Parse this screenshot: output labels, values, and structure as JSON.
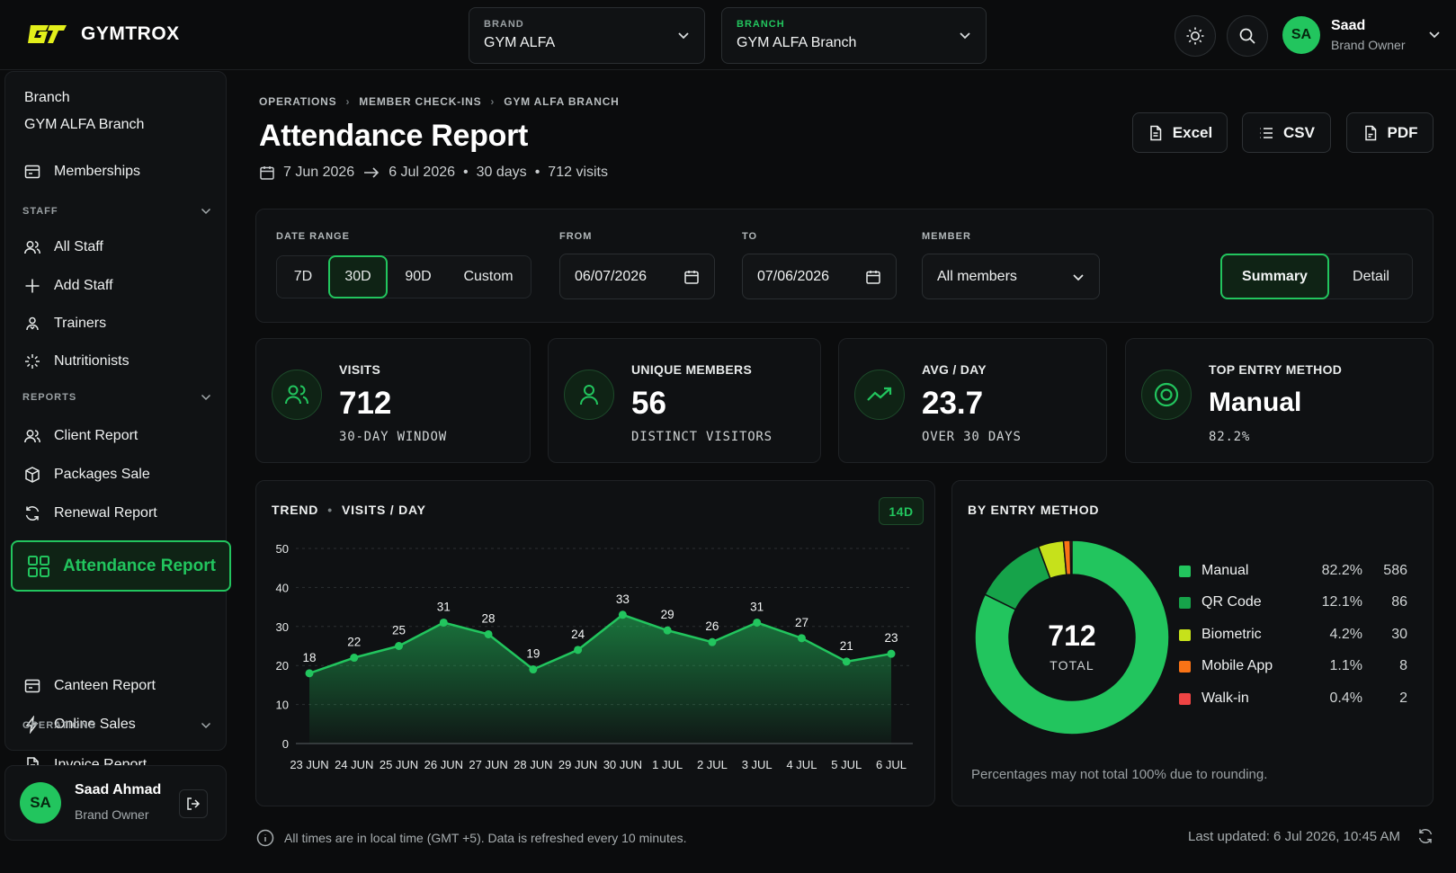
{
  "app": {
    "name": "GYMTROX"
  },
  "header": {
    "brand": {
      "label": "BRAND",
      "value": "GYM ALFA"
    },
    "branch": {
      "label": "BRANCH",
      "value": "GYM ALFA Branch"
    },
    "user": {
      "initials": "SA",
      "name": "Saad",
      "role": "Brand Owner"
    }
  },
  "sidebar": {
    "branch_label": "Branch",
    "branch_value": "GYM ALFA Branch",
    "memberships": "Memberships",
    "staff_section": "STAFF",
    "staff_items": [
      "All Staff",
      "Add Staff",
      "Trainers",
      "Nutritionists"
    ],
    "reports_section": "REPORTS",
    "report_items": [
      "Client Report",
      "Packages Sale",
      "Renewal Report",
      "Attendance Report",
      "Canteen Report",
      "Online Sales",
      "Invoice Report"
    ],
    "operations_section": "OPERATIONS",
    "user": {
      "initials": "SA",
      "name": "Saad Ahmad",
      "role": "Brand Owner"
    }
  },
  "breadcrumb": [
    "OPERATIONS",
    "MEMBER CHECK-INS",
    "GYM ALFA BRANCH"
  ],
  "page": {
    "title": "Attendance Report",
    "date_from": "7 Jun 2026",
    "date_to": "6 Jul 2026",
    "days": "30 days",
    "visits": "712 visits"
  },
  "exports": [
    "Excel",
    "CSV",
    "PDF"
  ],
  "filters": {
    "date_range_label": "DATE RANGE",
    "ranges": [
      "7D",
      "30D",
      "90D",
      "Custom"
    ],
    "selected_range": "30D",
    "from_label": "FROM",
    "from_value": "06/07/2026",
    "to_label": "TO",
    "to_value": "07/06/2026",
    "member_label": "MEMBER",
    "member_value": "All members",
    "views": [
      "Summary",
      "Detail"
    ],
    "selected_view": "Summary"
  },
  "kpis": [
    {
      "label": "VISITS",
      "value": "712",
      "sub": "30-DAY WINDOW",
      "icon": "users-icon"
    },
    {
      "label": "UNIQUE MEMBERS",
      "value": "56",
      "sub": "DISTINCT VISITORS",
      "icon": "user-icon"
    },
    {
      "label": "AVG / DAY",
      "value": "23.7",
      "sub": "OVER 30 DAYS",
      "icon": "trend-up-icon"
    },
    {
      "label": "TOP ENTRY METHOD",
      "value": "Manual",
      "sub": "82.2%",
      "icon": "target-icon"
    }
  ],
  "trend": {
    "title": "TREND",
    "subtitle": "VISITS / DAY",
    "badge": "14D"
  },
  "entry": {
    "title": "BY ENTRY METHOD",
    "total": "712",
    "total_label": "TOTAL",
    "methods": [
      {
        "name": "Manual",
        "pct": "82.2%",
        "count": "586",
        "color": "#22c55e"
      },
      {
        "name": "QR Code",
        "pct": "12.1%",
        "count": "86",
        "color": "#16a34a"
      },
      {
        "name": "Biometric",
        "pct": "4.2%",
        "count": "30",
        "color": "#c6e11b"
      },
      {
        "name": "Mobile App",
        "pct": "1.1%",
        "count": "8",
        "color": "#f97316"
      },
      {
        "name": "Walk-in",
        "pct": "0.4%",
        "count": "2",
        "color": "#ef4444"
      }
    ],
    "note": "Percentages may not total 100% due to rounding."
  },
  "footer": {
    "info": "All times are in local time (GMT +5). Data is refreshed every 10 minutes.",
    "updated": "Last updated: 6 Jul 2026, 10:45 AM"
  },
  "colors": {
    "accent": "#22c55e",
    "background": "#0b0c0d",
    "panel": "#0f1113"
  },
  "chart_data": [
    {
      "type": "area",
      "title": "TREND",
      "subtitle": "VISITS / DAY",
      "categories": [
        "23 JUN",
        "24 JUN",
        "25 JUN",
        "26 JUN",
        "27 JUN",
        "28 JUN",
        "29 JUN",
        "30 JUN",
        "1 JUL",
        "2 JUL",
        "3 JUL",
        "4 JUL",
        "5 JUL",
        "6 JUL"
      ],
      "values": [
        18,
        22,
        25,
        31,
        28,
        19,
        24,
        33,
        29,
        26,
        31,
        27,
        21,
        23
      ],
      "ylim": [
        0,
        50
      ],
      "yticks": [
        0,
        10,
        20,
        30,
        40,
        50
      ],
      "grid": true
    },
    {
      "type": "pie",
      "title": "BY ENTRY METHOD",
      "labels": [
        "Manual",
        "QR Code",
        "Biometric",
        "Mobile App",
        "Walk-in"
      ],
      "values": [
        586,
        86,
        30,
        8,
        2
      ],
      "total": 712
    }
  ]
}
